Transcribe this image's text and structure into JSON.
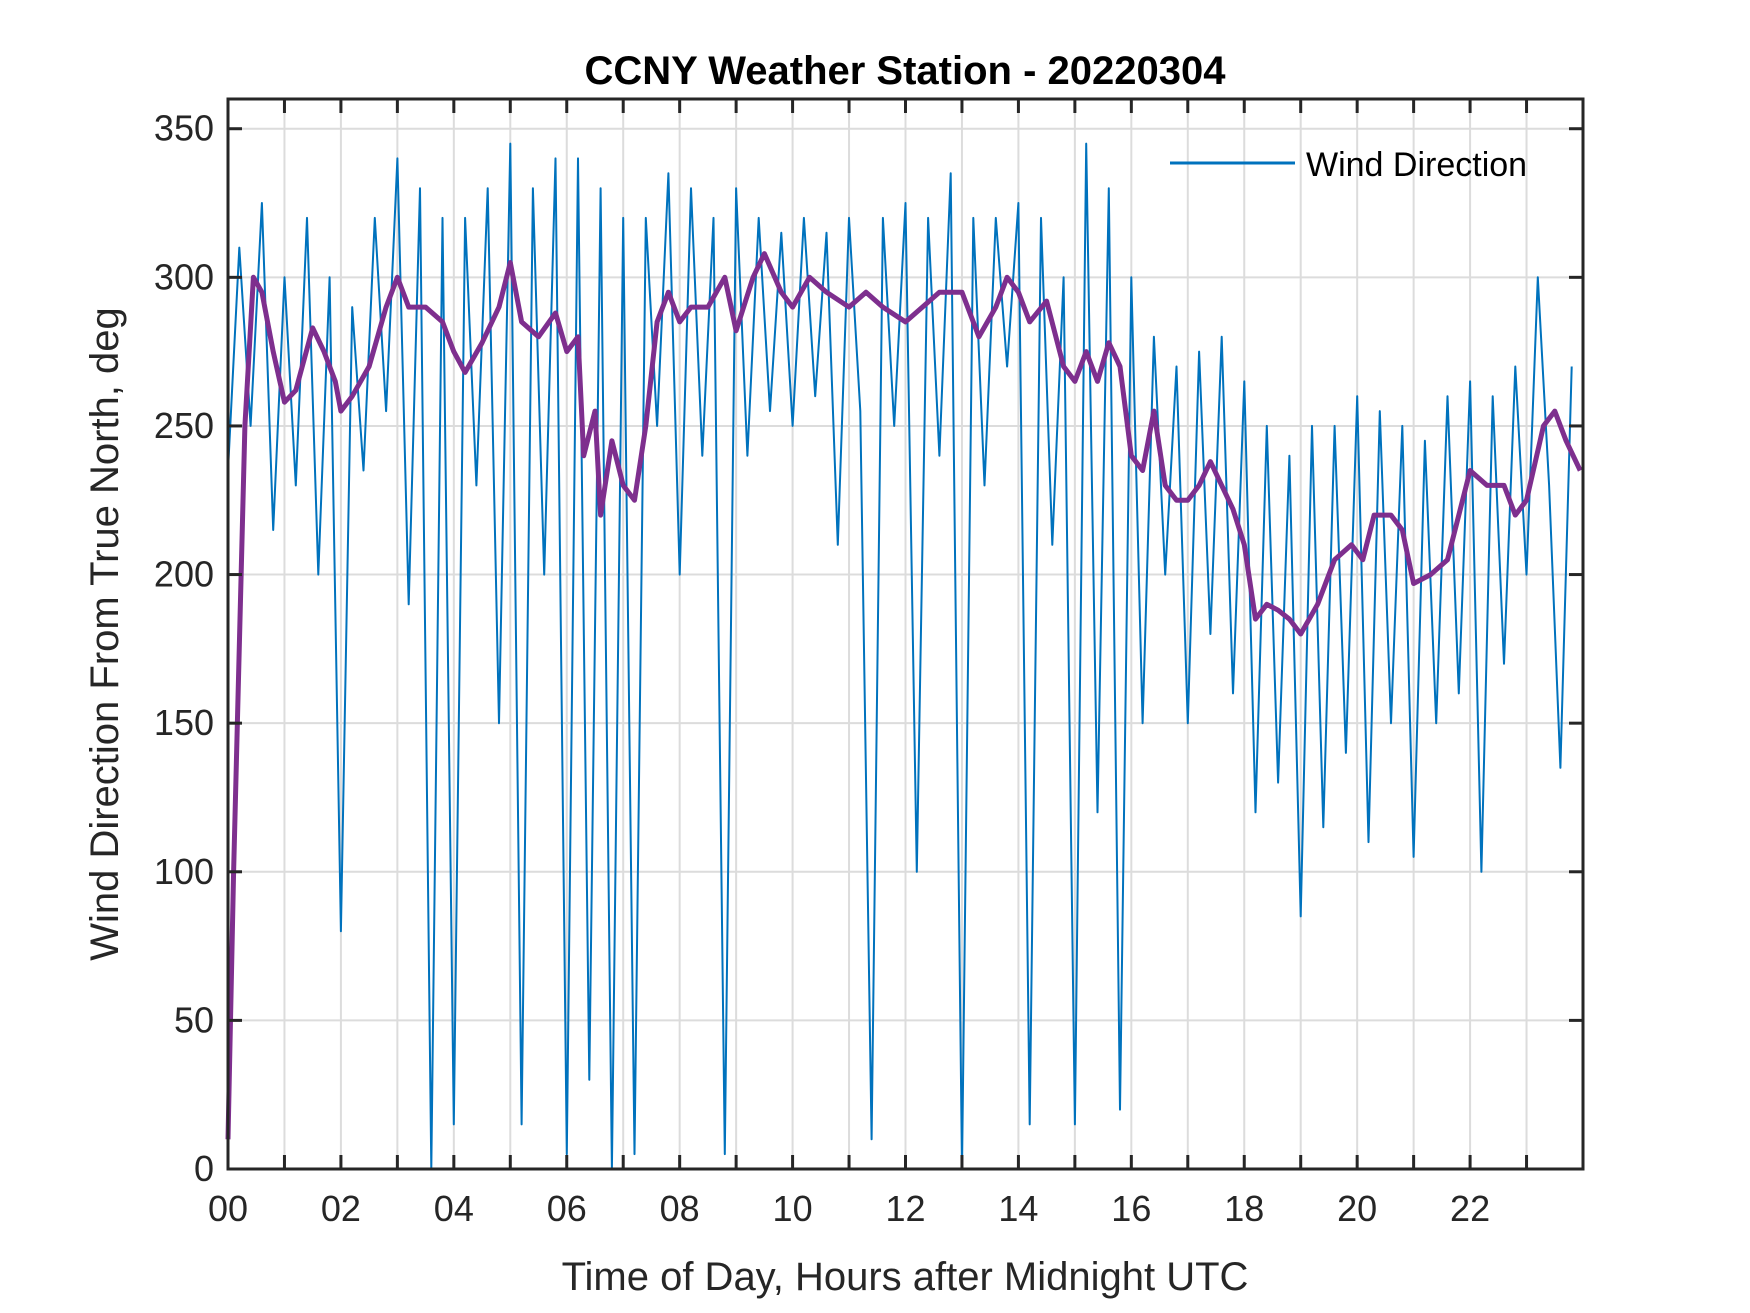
{
  "chart_data": {
    "type": "line",
    "title": "CCNY Weather Station - 20220304",
    "xlabel": "Time of Day, Hours after Midnight UTC",
    "ylabel": "Wind Direction From True North, deg",
    "xlim": [
      0,
      24
    ],
    "ylim": [
      0,
      360
    ],
    "xticks": [
      0,
      2,
      4,
      6,
      8,
      10,
      12,
      14,
      16,
      18,
      20,
      22
    ],
    "xtick_labels": [
      "00",
      "02",
      "04",
      "06",
      "08",
      "10",
      "12",
      "14",
      "16",
      "18",
      "20",
      "22"
    ],
    "xminor_grid_step_hours": 1,
    "yticks": [
      0,
      50,
      100,
      150,
      200,
      250,
      300,
      350
    ],
    "ytick_labels": [
      "0",
      "50",
      "100",
      "150",
      "200",
      "250",
      "300",
      "350"
    ],
    "grid": true,
    "legend": {
      "placement": "top-right",
      "entries": [
        "Wind Direction"
      ]
    },
    "series": [
      {
        "name": "Wind Direction",
        "color": "#0072BD",
        "x_start": 0,
        "x_step": 0.2,
        "values": [
          235,
          310,
          250,
          325,
          215,
          300,
          230,
          320,
          200,
          300,
          80,
          290,
          235,
          320,
          255,
          340,
          190,
          330,
          0,
          320,
          15,
          320,
          230,
          330,
          150,
          345,
          15,
          330,
          200,
          340,
          5,
          340,
          30,
          330,
          0,
          320,
          5,
          320,
          250,
          335,
          200,
          330,
          240,
          320,
          5,
          330,
          240,
          320,
          255,
          315,
          250,
          320,
          260,
          315,
          210,
          320,
          255,
          10,
          320,
          250,
          325,
          100,
          320,
          240,
          335,
          0,
          320,
          230,
          320,
          270,
          325,
          15,
          320,
          210,
          300,
          15,
          345,
          120,
          330,
          20,
          300,
          150,
          280,
          200,
          270,
          150,
          275,
          180,
          280,
          160,
          265,
          120,
          250,
          130,
          240,
          85,
          250,
          115,
          250,
          140,
          260,
          110,
          255,
          150,
          250,
          105,
          245,
          150,
          260,
          160,
          265,
          100,
          260,
          170,
          270,
          200,
          300,
          230,
          135,
          270
        ]
      },
      {
        "color": "#7E2F8E",
        "x": [
          0,
          0.1,
          0.3,
          0.45,
          0.6,
          0.8,
          1.0,
          1.2,
          1.5,
          1.7,
          1.9,
          2.0,
          2.2,
          2.5,
          2.8,
          3.0,
          3.2,
          3.5,
          3.8,
          4.0,
          4.2,
          4.5,
          4.8,
          5.0,
          5.2,
          5.5,
          5.8,
          6.0,
          6.2,
          6.3,
          6.5,
          6.6,
          6.8,
          7.0,
          7.2,
          7.4,
          7.6,
          7.8,
          8.0,
          8.2,
          8.5,
          8.8,
          9.0,
          9.3,
          9.5,
          9.8,
          10.0,
          10.3,
          10.6,
          11.0,
          11.3,
          11.6,
          12.0,
          12.3,
          12.6,
          13.0,
          13.3,
          13.6,
          13.8,
          14.0,
          14.2,
          14.5,
          14.8,
          15.0,
          15.2,
          15.4,
          15.6,
          15.8,
          16.0,
          16.2,
          16.4,
          16.6,
          16.8,
          17.0,
          17.2,
          17.4,
          17.6,
          17.8,
          18.0,
          18.2,
          18.4,
          18.6,
          18.8,
          19.0,
          19.3,
          19.6,
          19.9,
          20.1,
          20.3,
          20.6,
          20.8,
          21.0,
          21.3,
          21.6,
          21.8,
          22.0,
          22.3,
          22.6,
          22.8,
          23.0,
          23.3,
          23.5,
          23.7,
          23.95
        ],
        "values": [
          10,
          100,
          250,
          300,
          295,
          275,
          258,
          262,
          283,
          275,
          265,
          255,
          260,
          270,
          290,
          300,
          290,
          290,
          285,
          275,
          268,
          278,
          290,
          305,
          285,
          280,
          288,
          275,
          280,
          240,
          255,
          220,
          245,
          230,
          225,
          250,
          285,
          295,
          285,
          290,
          290,
          300,
          282,
          300,
          308,
          295,
          290,
          300,
          295,
          290,
          295,
          290,
          285,
          290,
          295,
          295,
          280,
          290,
          300,
          295,
          285,
          292,
          270,
          265,
          275,
          265,
          278,
          270,
          240,
          235,
          255,
          230,
          225,
          225,
          230,
          238,
          230,
          222,
          210,
          185,
          190,
          188,
          185,
          180,
          190,
          205,
          210,
          205,
          220,
          220,
          215,
          197,
          200,
          205,
          220,
          235,
          230,
          230,
          220,
          225,
          250,
          255,
          245,
          235
        ]
      }
    ]
  }
}
